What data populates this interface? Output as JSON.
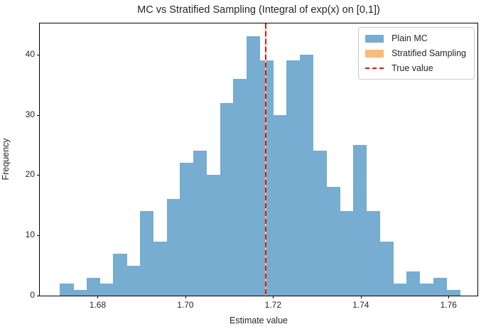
{
  "title": "MC vs Stratified Sampling (Integral of exp(x) on [0,1])",
  "xlabel": "Estimate value",
  "ylabel": "Frequency",
  "legend": {
    "items": [
      {
        "label": "Plain MC",
        "type": "patch",
        "color": "#76add0"
      },
      {
        "label": "Stratified Sampling",
        "type": "patch",
        "color": "#fdbb74"
      },
      {
        "label": "True value",
        "type": "dashed-line",
        "color": "#e51010"
      }
    ]
  },
  "colors": {
    "plain_mc_blue": "#76add0",
    "stratified_orange": "#fdbb74",
    "true_value_red": "#e51010",
    "spine_black": "#000000",
    "text": "#262626"
  },
  "chart_data": {
    "type": "bar",
    "subtype": "histogram",
    "title": "MC vs Stratified Sampling (Integral of exp(x) on [0,1])",
    "xlabel": "Estimate value",
    "ylabel": "Frequency",
    "xlim": [
      1.6668,
      1.7666
    ],
    "ylim": [
      0,
      45.15
    ],
    "grid": false,
    "legend_position": "upper right",
    "xticks": [
      {
        "value": 1.68,
        "label": "1.68"
      },
      {
        "value": 1.7,
        "label": "1.70"
      },
      {
        "value": 1.72,
        "label": "1.72"
      },
      {
        "value": 1.74,
        "label": "1.74"
      },
      {
        "value": 1.76,
        "label": "1.76"
      }
    ],
    "yticks": [
      {
        "value": 0,
        "label": "0"
      },
      {
        "value": 10,
        "label": "10"
      },
      {
        "value": 20,
        "label": "20"
      },
      {
        "value": 30,
        "label": "30"
      },
      {
        "value": 40,
        "label": "40"
      }
    ],
    "series": [
      {
        "name": "Plain MC",
        "color": "#76add0",
        "bin_start": 1.6714,
        "bin_width": 0.00304,
        "counts": [
          2,
          1,
          3,
          2,
          7,
          5,
          14,
          9,
          16,
          22,
          24,
          20,
          32,
          36,
          43,
          39,
          30,
          39,
          40,
          24,
          18,
          14,
          25,
          14,
          9,
          2,
          4,
          2,
          3,
          1
        ]
      },
      {
        "name": "Stratified Sampling",
        "color": "#fdbb74",
        "note": "narrow spike at x = 1.718, visually hidden behind the true-value line"
      }
    ],
    "true_value_line": {
      "x": 1.71828,
      "style": "dashed",
      "color": "#e51010"
    }
  }
}
